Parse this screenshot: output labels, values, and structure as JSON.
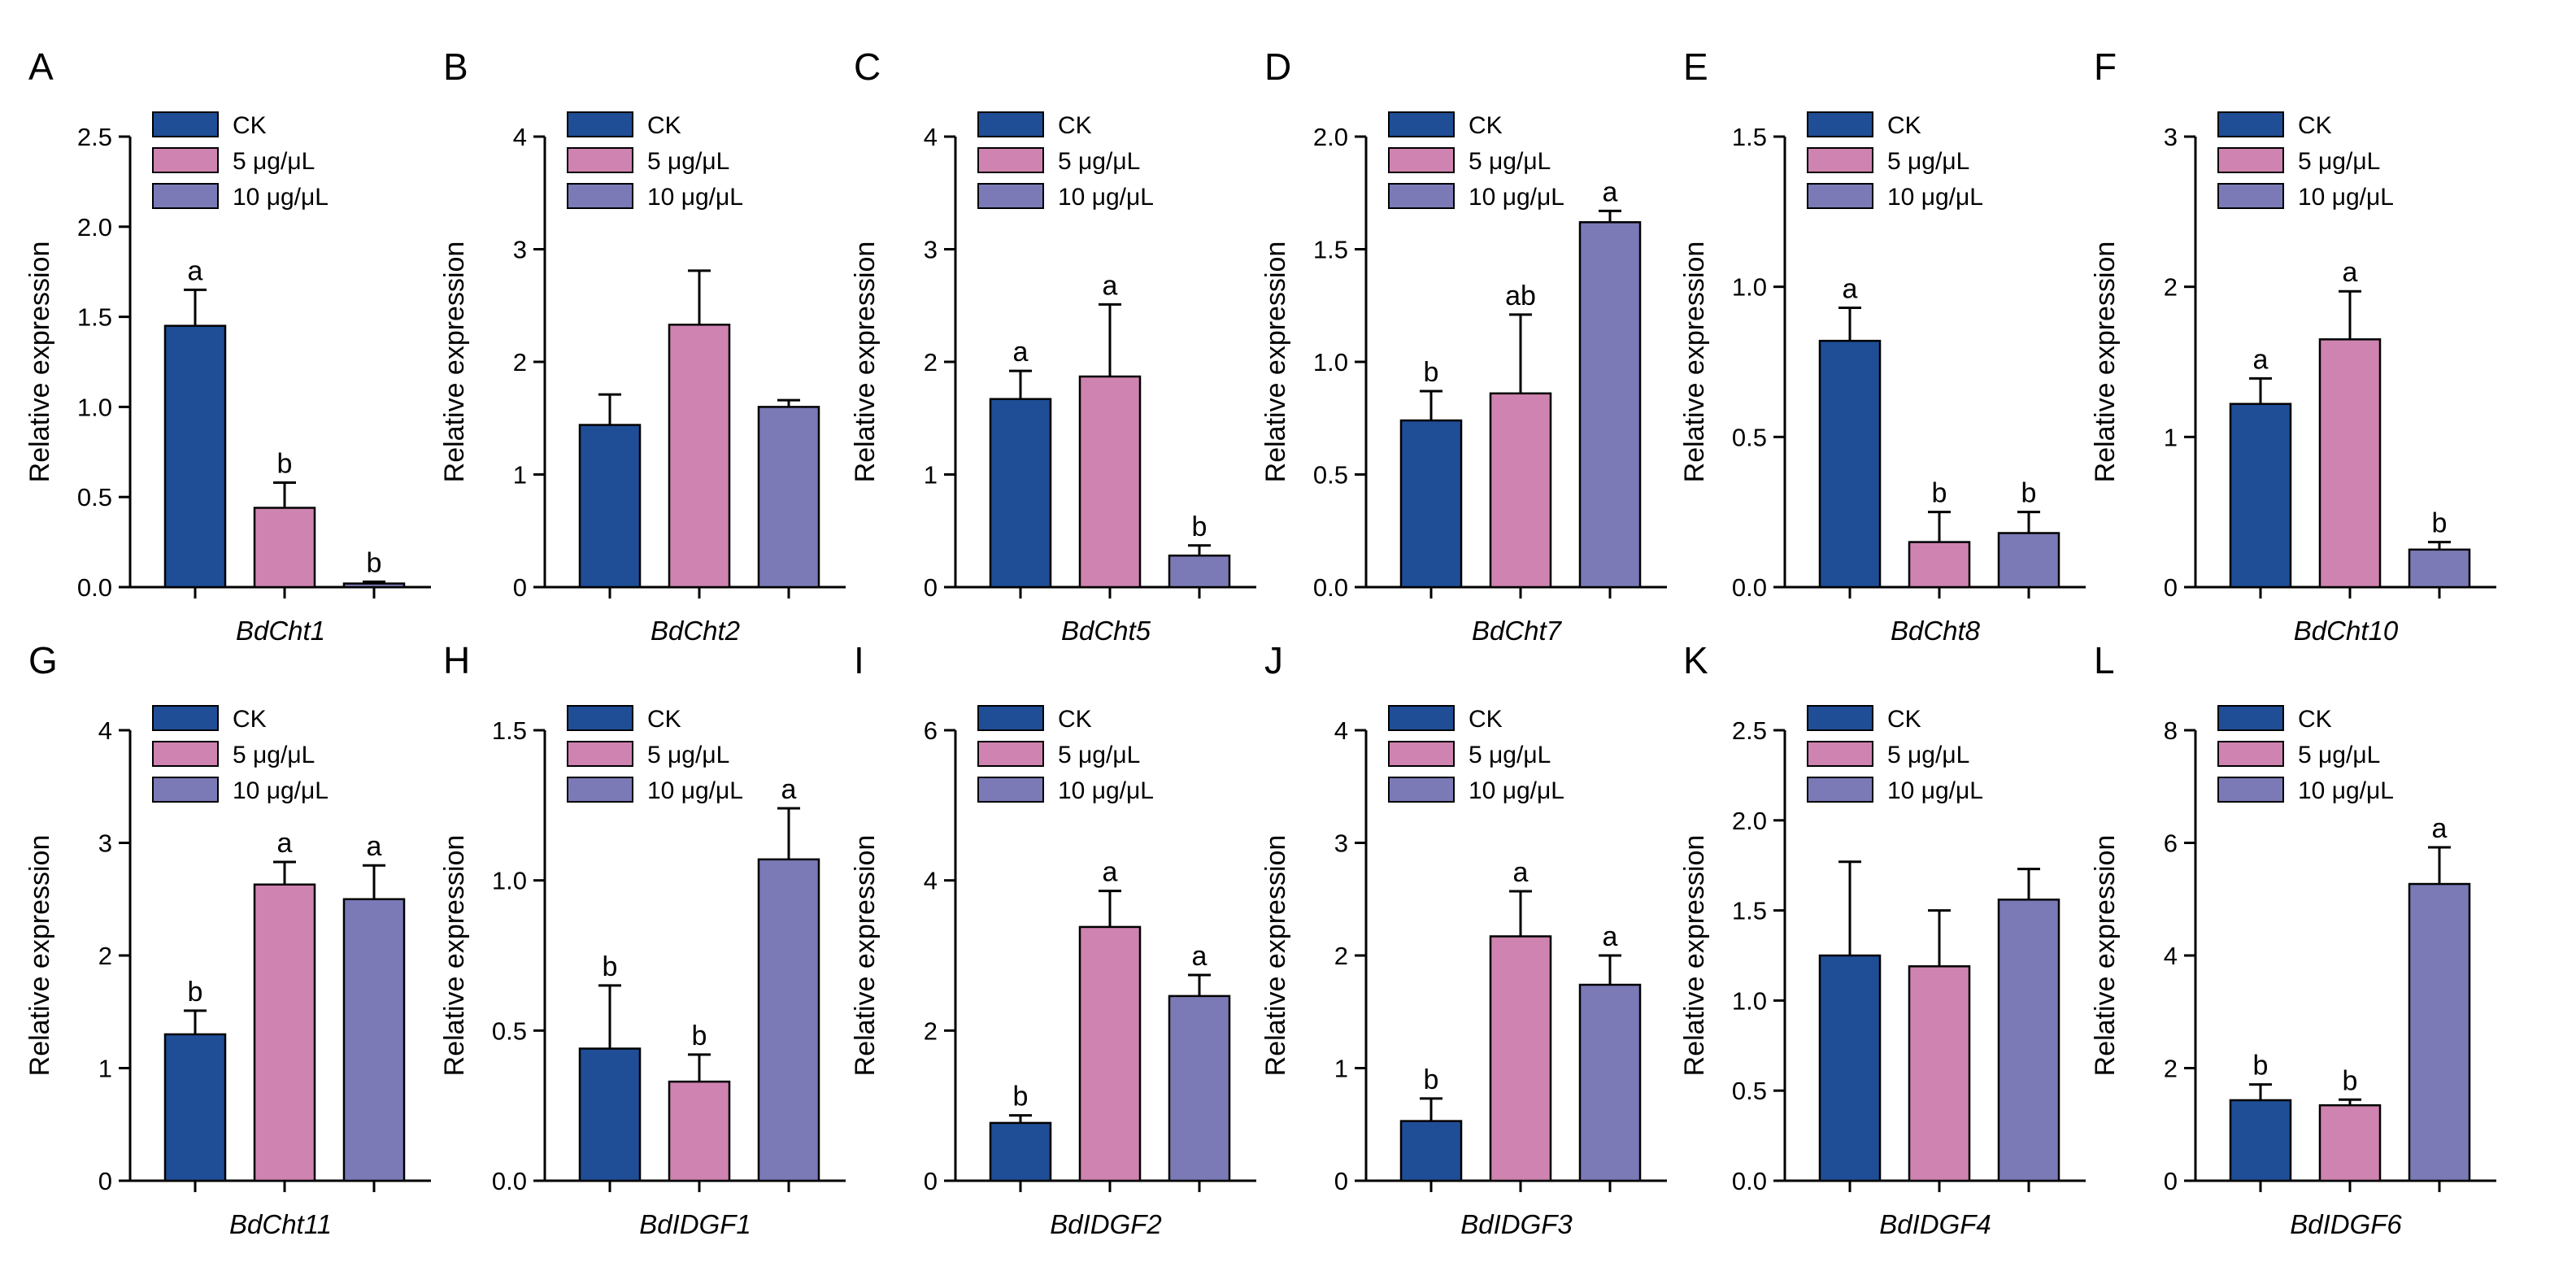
{
  "legend": [
    "CK",
    "5 μg/μL",
    "10 μg/μL"
  ],
  "colors": {
    "CK": "#1f4e96",
    "5 μg/μL": "#cf83b0",
    "10 μg/μL": "#7b7ab7"
  },
  "ylabel": "Relative expression",
  "chart_data": [
    {
      "type": "bar",
      "panel": "A",
      "title": "BdCht1",
      "xlabel": "BdCht1",
      "ylabel": "Relative expression",
      "categories": [
        "CK",
        "5 μg/μL",
        "10 μg/μL"
      ],
      "ylim": [
        0,
        2.5
      ],
      "yticks": [
        "0.0",
        "0.5",
        "1.0",
        "1.5",
        "2.0",
        "2.5"
      ],
      "values": [
        1.45,
        0.44,
        0.02
      ],
      "errors": [
        0.2,
        0.14,
        0.01
      ],
      "letters": [
        "a",
        "b",
        "b"
      ]
    },
    {
      "type": "bar",
      "panel": "B",
      "title": "BdCht2",
      "xlabel": "BdCht2",
      "ylabel": "Relative expression",
      "categories": [
        "CK",
        "5 μg/μL",
        "10 μg/μL"
      ],
      "ylim": [
        0,
        4
      ],
      "yticks": [
        "0",
        "1",
        "2",
        "3",
        "4"
      ],
      "values": [
        1.44,
        2.33,
        1.6
      ],
      "errors": [
        0.27,
        0.48,
        0.06
      ],
      "letters": [
        "",
        "",
        ""
      ]
    },
    {
      "type": "bar",
      "panel": "C",
      "title": "BdCht5",
      "xlabel": "BdCht5",
      "ylabel": "Relative expression",
      "categories": [
        "CK",
        "5 μg/μL",
        "10 μg/μL"
      ],
      "ylim": [
        0,
        4
      ],
      "yticks": [
        "0",
        "1",
        "2",
        "3",
        "4"
      ],
      "values": [
        1.67,
        1.87,
        0.28
      ],
      "errors": [
        0.25,
        0.64,
        0.09
      ],
      "letters": [
        "a",
        "a",
        "b"
      ]
    },
    {
      "type": "bar",
      "panel": "D",
      "title": "BdCht7",
      "xlabel": "BdCht7",
      "ylabel": "Relative expression",
      "categories": [
        "CK",
        "5 μg/μL",
        "10 μg/μL"
      ],
      "ylim": [
        0,
        2.0
      ],
      "yticks": [
        "0.0",
        "0.5",
        "1.0",
        "1.5",
        "2.0"
      ],
      "values": [
        0.74,
        0.86,
        1.62
      ],
      "errors": [
        0.13,
        0.35,
        0.05
      ],
      "letters": [
        "b",
        "ab",
        "a"
      ]
    },
    {
      "type": "bar",
      "panel": "E",
      "title": "BdCht8",
      "xlabel": "BdCht8",
      "ylabel": "Relative expression",
      "categories": [
        "CK",
        "5 μg/μL",
        "10 μg/μL"
      ],
      "ylim": [
        0,
        1.5
      ],
      "yticks": [
        "0.0",
        "0.5",
        "1.0",
        "1.5"
      ],
      "values": [
        0.82,
        0.15,
        0.18
      ],
      "errors": [
        0.11,
        0.1,
        0.07
      ],
      "letters": [
        "a",
        "b",
        "b"
      ]
    },
    {
      "type": "bar",
      "panel": "F",
      "title": "BdCht10",
      "xlabel": "BdCht10",
      "ylabel": "Relative expression",
      "categories": [
        "CK",
        "5 μg/μL",
        "10 μg/μL"
      ],
      "ylim": [
        0,
        3
      ],
      "yticks": [
        "0",
        "1",
        "2",
        "3"
      ],
      "values": [
        1.22,
        1.65,
        0.25
      ],
      "errors": [
        0.17,
        0.32,
        0.05
      ],
      "letters": [
        "a",
        "a",
        "b"
      ]
    },
    {
      "type": "bar",
      "panel": "G",
      "title": "BdCht11",
      "xlabel": "BdCht11",
      "ylabel": "Relative expression",
      "categories": [
        "CK",
        "5 μg/μL",
        "10 μg/μL"
      ],
      "ylim": [
        0,
        4
      ],
      "yticks": [
        "0",
        "1",
        "2",
        "3",
        "4"
      ],
      "values": [
        1.3,
        2.63,
        2.5
      ],
      "errors": [
        0.21,
        0.2,
        0.3
      ],
      "letters": [
        "b",
        "a",
        "a"
      ]
    },
    {
      "type": "bar",
      "panel": "H",
      "title": "BdIDGF1",
      "xlabel": "BdIDGF1",
      "ylabel": "Relative expression",
      "categories": [
        "CK",
        "5 μg/μL",
        "10 μg/μL"
      ],
      "ylim": [
        0,
        1.5
      ],
      "yticks": [
        "0.0",
        "0.5",
        "1.0",
        "1.5"
      ],
      "values": [
        0.44,
        0.33,
        1.07
      ],
      "errors": [
        0.21,
        0.09,
        0.17
      ],
      "letters": [
        "b",
        "b",
        "a"
      ]
    },
    {
      "type": "bar",
      "panel": "I",
      "title": "BdIDGF2",
      "xlabel": "BdIDGF2",
      "ylabel": "Relative expression",
      "categories": [
        "CK",
        "5 μg/μL",
        "10 μg/μL"
      ],
      "ylim": [
        0,
        6
      ],
      "yticks": [
        "0",
        "2",
        "4",
        "6"
      ],
      "values": [
        0.77,
        3.38,
        2.46
      ],
      "errors": [
        0.1,
        0.48,
        0.28
      ],
      "letters": [
        "b",
        "a",
        "a"
      ]
    },
    {
      "type": "bar",
      "panel": "J",
      "title": "BdIDGF3",
      "xlabel": "BdIDGF3",
      "ylabel": "Relative expression",
      "categories": [
        "CK",
        "5 μg/μL",
        "10 μg/μL"
      ],
      "ylim": [
        0,
        4
      ],
      "yticks": [
        "0",
        "1",
        "2",
        "3",
        "4"
      ],
      "values": [
        0.53,
        2.17,
        1.74
      ],
      "errors": [
        0.2,
        0.4,
        0.26
      ],
      "letters": [
        "b",
        "a",
        "a"
      ]
    },
    {
      "type": "bar",
      "panel": "K",
      "title": "BdIDGF4",
      "xlabel": "BdIDGF4",
      "ylabel": "Relative expression",
      "categories": [
        "CK",
        "5 μg/μL",
        "10 μg/μL"
      ],
      "ylim": [
        0,
        2.5
      ],
      "yticks": [
        "0.0",
        "0.5",
        "1.0",
        "1.5",
        "2.0",
        "2.5"
      ],
      "values": [
        1.25,
        1.19,
        1.56
      ],
      "errors": [
        0.52,
        0.31,
        0.17
      ],
      "letters": [
        "",
        "",
        ""
      ]
    },
    {
      "type": "bar",
      "panel": "L",
      "title": "BdIDGF6",
      "xlabel": "BdIDGF6",
      "ylabel": "Relative expression",
      "categories": [
        "CK",
        "5 μg/μL",
        "10 μg/μL"
      ],
      "ylim": [
        0,
        8
      ],
      "yticks": [
        "0",
        "2",
        "4",
        "6",
        "8"
      ],
      "values": [
        1.43,
        1.34,
        5.27
      ],
      "errors": [
        0.28,
        0.1,
        0.65
      ],
      "letters": [
        "b",
        "b",
        "a"
      ]
    }
  ]
}
